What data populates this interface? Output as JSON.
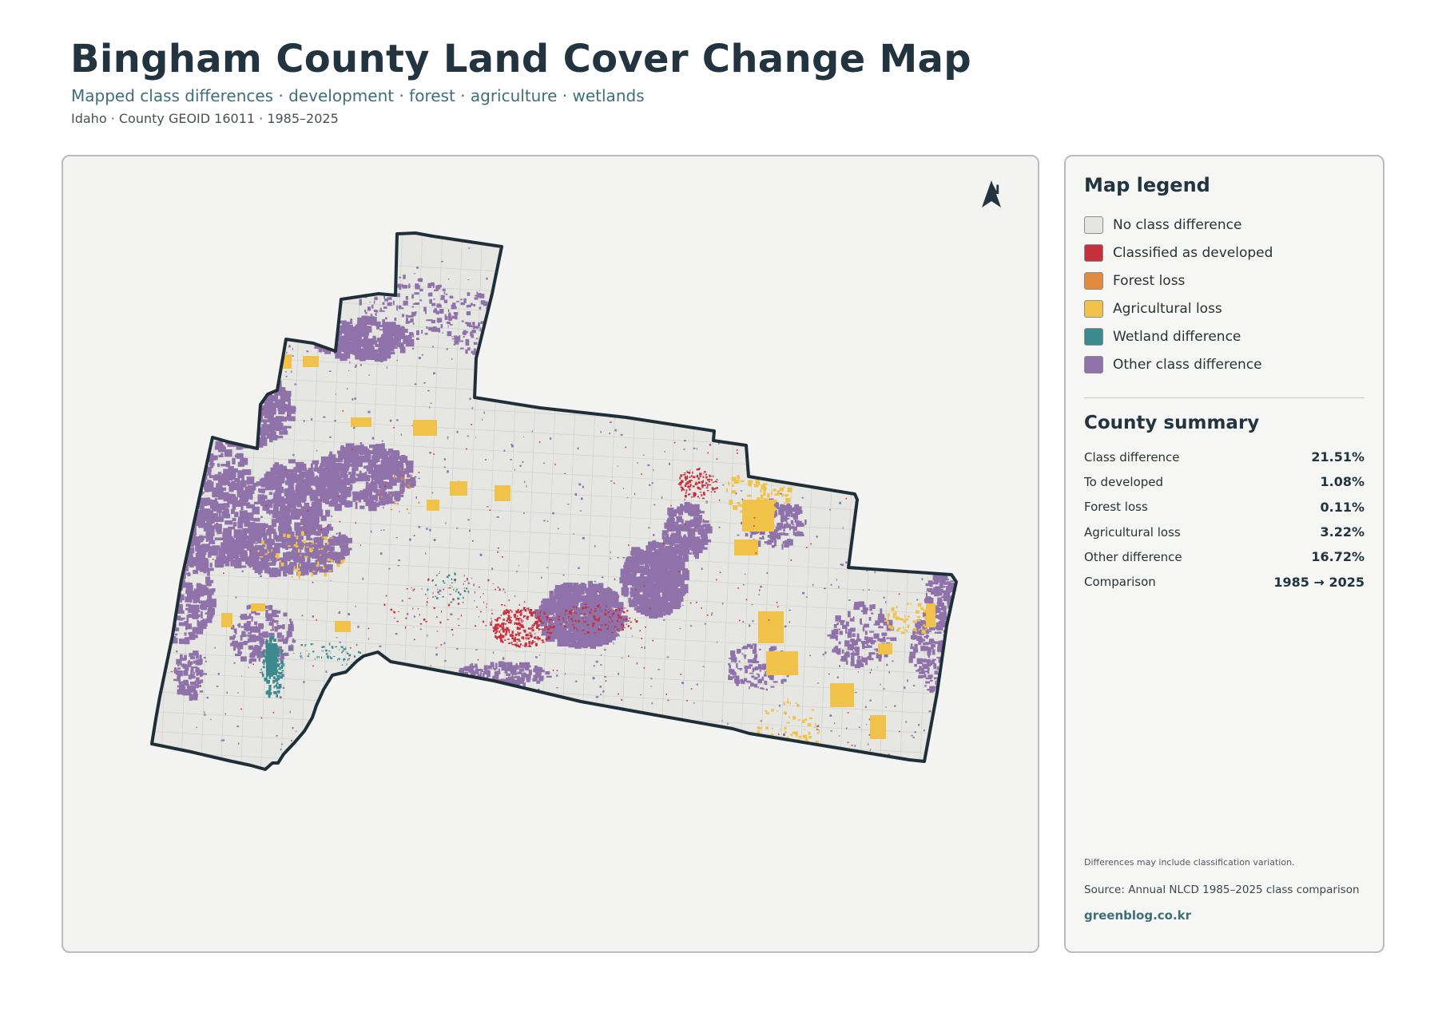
{
  "header": {
    "title": "Bingham County Land Cover Change Map",
    "subtitle": "Mapped class differences · development · forest · agriculture · wetlands",
    "meta": "Idaho · County GEOID 16011 · 1985–2025"
  },
  "map": {
    "north_label": "N",
    "colors": {
      "background": "#e6e6e2",
      "outline": "#1f2f38",
      "grid": "#cfcfca"
    }
  },
  "legend": {
    "title": "Map legend",
    "items": [
      {
        "label": "No class difference",
        "color": "#e4e4e0"
      },
      {
        "label": "Classified as developed",
        "color": "#c62f3c"
      },
      {
        "label": "Forest loss",
        "color": "#df8a3c"
      },
      {
        "label": "Agricultural loss",
        "color": "#f0c24a"
      },
      {
        "label": "Wetland difference",
        "color": "#3b8a8e"
      },
      {
        "label": "Other class difference",
        "color": "#8e72a9"
      }
    ]
  },
  "summary": {
    "title": "County summary",
    "rows": [
      {
        "label": "Class difference",
        "value": "21.51%"
      },
      {
        "label": "To developed",
        "value": "1.08%"
      },
      {
        "label": "Forest loss",
        "value": "0.11%"
      },
      {
        "label": "Agricultural loss",
        "value": "3.22%"
      },
      {
        "label": "Other difference",
        "value": "16.72%"
      },
      {
        "label": "Comparison",
        "value": "1985 → 2025"
      }
    ]
  },
  "footer": {
    "note": "Differences may include classification variation.",
    "source": "Source: Annual NLCD 1985–2025 class comparison",
    "link": "greenblog.co.kr"
  }
}
